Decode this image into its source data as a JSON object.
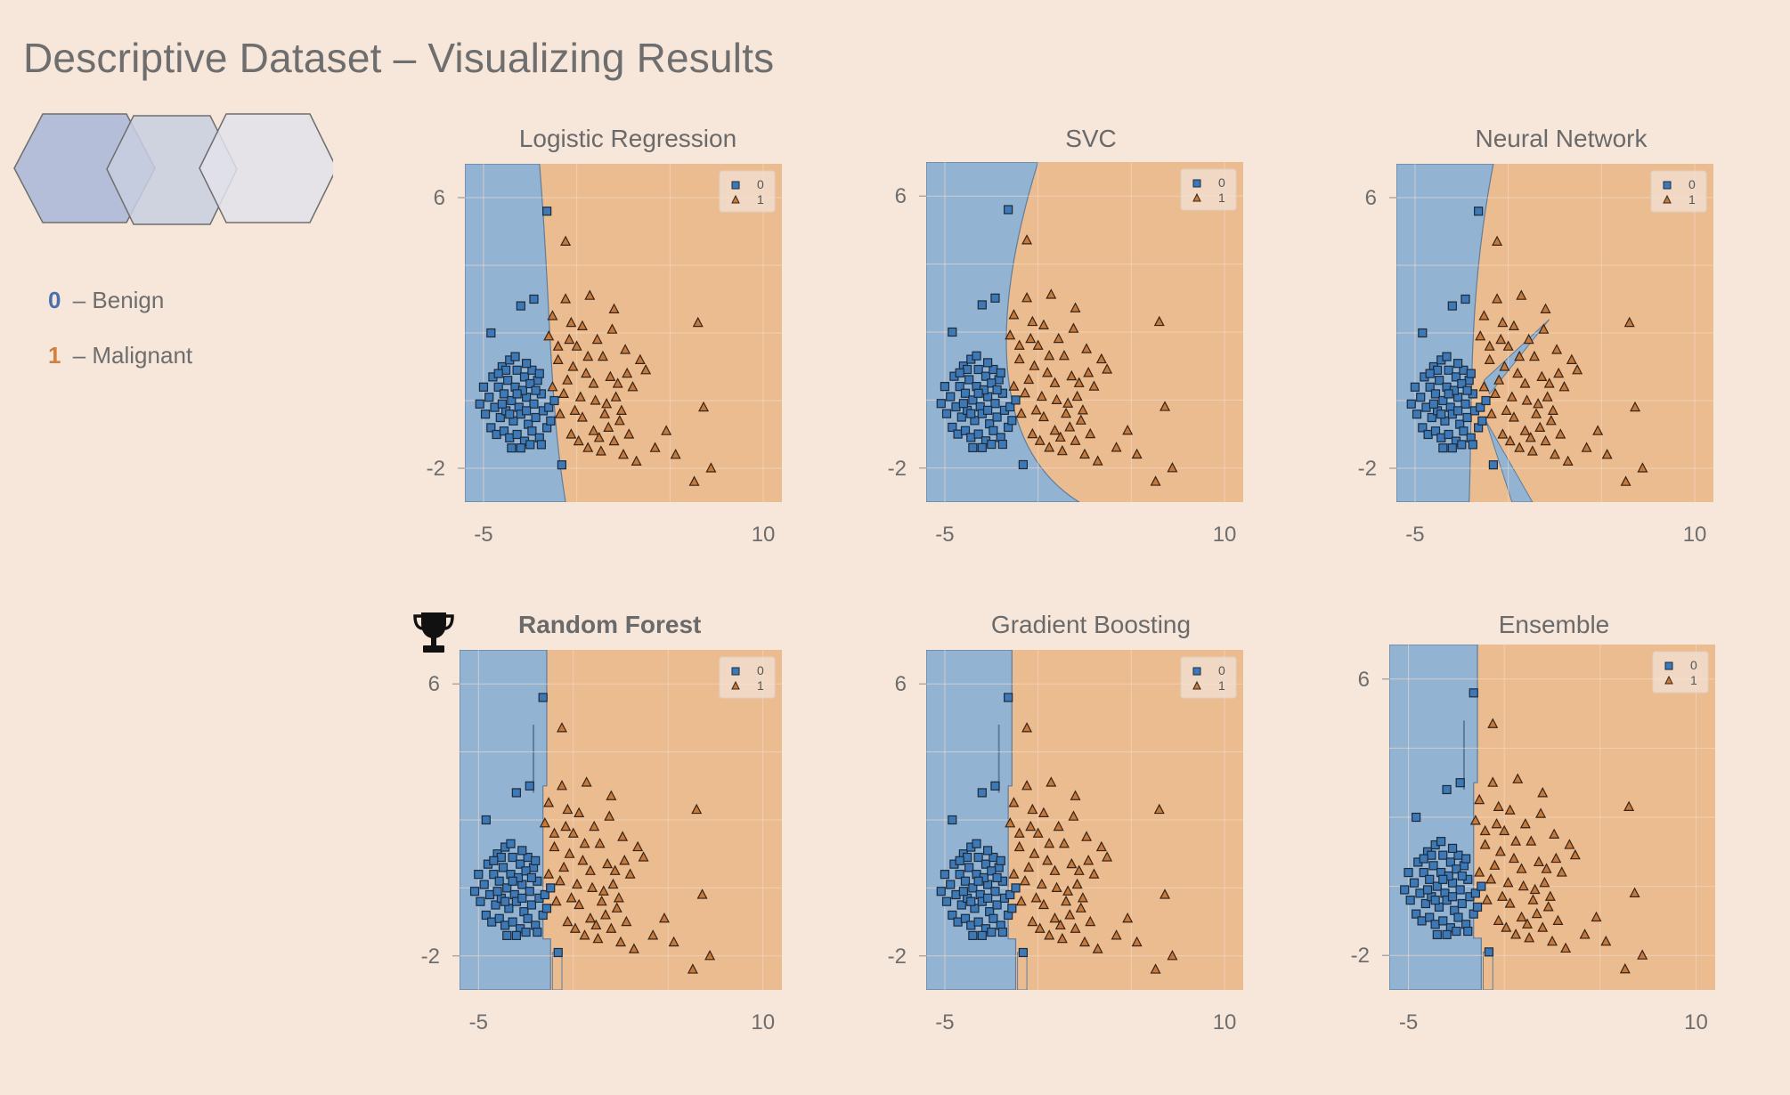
{
  "title": "Descriptive Dataset – Visualizing Results",
  "class_legend": [
    {
      "key": "0",
      "separator": " – ",
      "label": "Benign",
      "color": "#4a70b0"
    },
    {
      "key": "1",
      "separator": " – ",
      "label": "Malignant",
      "color": "#d08040"
    }
  ],
  "decoration": {
    "icon": "hexagon-cluster-icon",
    "colors": [
      "#b0bcd8",
      "#c8cfe0",
      "#e2e2ea"
    ]
  },
  "colors": {
    "region_0": "#93b3d3",
    "region_1": "#ebbc90",
    "marker_0": "#3d79b6",
    "marker_1": "#c47a3c",
    "grid": "#f5dcc8"
  },
  "panel_legend_labels": [
    "0",
    "1"
  ],
  "winner_icon": "trophy-icon",
  "chart_data": [
    {
      "type": "scatter",
      "title": "Logistic Regression",
      "winner": false,
      "boundary": "linear",
      "xticks": [
        "-5",
        "10"
      ],
      "yticks": [
        "6",
        "-2"
      ],
      "xlim": [
        -6,
        11
      ],
      "ylim": [
        -3,
        7
      ],
      "legend": [
        "0",
        "1"
      ],
      "grid": true
    },
    {
      "type": "scatter",
      "title": "SVC",
      "winner": false,
      "boundary": "curved",
      "xticks": [
        "-5",
        "10"
      ],
      "yticks": [
        "6",
        "-2"
      ],
      "xlim": [
        -6,
        11
      ],
      "ylim": [
        -3,
        7
      ],
      "legend": [
        "0",
        "1"
      ],
      "grid": true
    },
    {
      "type": "scatter",
      "title": "Neural Network",
      "winner": false,
      "boundary": "wedge",
      "xticks": [
        "-5",
        "10"
      ],
      "yticks": [
        "6",
        "-2"
      ],
      "xlim": [
        -6,
        11
      ],
      "ylim": [
        -3,
        7
      ],
      "legend": [
        "0",
        "1"
      ],
      "grid": true
    },
    {
      "type": "scatter",
      "title": "Random Forest",
      "winner": true,
      "boundary": "step",
      "xticks": [
        "-5",
        "10"
      ],
      "yticks": [
        "6",
        "-2"
      ],
      "xlim": [
        -6,
        11
      ],
      "ylim": [
        -3,
        7
      ],
      "legend": [
        "0",
        "1"
      ],
      "grid": true
    },
    {
      "type": "scatter",
      "title": "Gradient Boosting",
      "winner": false,
      "boundary": "step",
      "xticks": [
        "-5",
        "10"
      ],
      "yticks": [
        "6",
        "-2"
      ],
      "xlim": [
        -6,
        11
      ],
      "ylim": [
        -3,
        7
      ],
      "legend": [
        "0",
        "1"
      ],
      "grid": true
    },
    {
      "type": "scatter",
      "title": "Ensemble",
      "winner": false,
      "boundary": "step",
      "xticks": [
        "-5",
        "10"
      ],
      "yticks": [
        "6",
        "-2"
      ],
      "xlim": [
        -6,
        11
      ],
      "ylim": [
        -3,
        7
      ],
      "legend": [
        "0",
        "1"
      ],
      "grid": true
    }
  ],
  "points": {
    "class_0": [
      [
        -1.6,
        5.6
      ],
      [
        -2.3,
        3.0
      ],
      [
        -3.0,
        2.8
      ],
      [
        -4.6,
        2.0
      ],
      [
        -2.1,
        0.6
      ],
      [
        -0.8,
        -1.9
      ],
      [
        -4.0,
        1.0
      ],
      [
        -3.6,
        1.2
      ],
      [
        -3.2,
        0.9
      ],
      [
        -2.8,
        0.7
      ],
      [
        -2.4,
        0.9
      ],
      [
        -4.5,
        0.7
      ],
      [
        -4.2,
        0.4
      ],
      [
        -3.9,
        0.2
      ],
      [
        -3.5,
        0.0
      ],
      [
        -3.1,
        -0.2
      ],
      [
        -2.7,
        0.1
      ],
      [
        -2.3,
        -0.1
      ],
      [
        -1.9,
        0.2
      ],
      [
        -4.7,
        0.1
      ],
      [
        -4.4,
        -0.2
      ],
      [
        -4.1,
        -0.5
      ],
      [
        -3.8,
        -0.3
      ],
      [
        -3.4,
        -0.6
      ],
      [
        -3.0,
        -0.4
      ],
      [
        -2.6,
        -0.7
      ],
      [
        -2.2,
        -0.5
      ],
      [
        -1.8,
        -0.3
      ],
      [
        -4.9,
        -0.4
      ],
      [
        -4.6,
        -0.8
      ],
      [
        -4.3,
        -1.0
      ],
      [
        -3.9,
        -0.9
      ],
      [
        -3.6,
        -1.1
      ],
      [
        -3.2,
        -1.0
      ],
      [
        -2.8,
        -1.2
      ],
      [
        -2.4,
        -0.9
      ],
      [
        -2.0,
        -1.1
      ],
      [
        -1.6,
        -0.8
      ],
      [
        -3.7,
        0.6
      ],
      [
        -3.3,
        0.4
      ],
      [
        -2.9,
        0.3
      ],
      [
        -2.5,
        0.5
      ],
      [
        -4.0,
        -0.1
      ],
      [
        -3.6,
        -0.4
      ],
      [
        -3.2,
        0.2
      ],
      [
        -2.7,
        -0.3
      ],
      [
        -3.8,
        0.9
      ],
      [
        -2.2,
        0.3
      ],
      [
        -1.5,
        -0.2
      ],
      [
        -1.2,
        0.0
      ],
      [
        -1.4,
        -0.6
      ],
      [
        -3.5,
        -1.4
      ],
      [
        -3.0,
        -1.4
      ],
      [
        -2.5,
        -1.3
      ],
      [
        -1.9,
        -1.3
      ],
      [
        -4.2,
        0.8
      ],
      [
        -2.0,
        0.8
      ],
      [
        -5.2,
        -0.1
      ],
      [
        -5.0,
        0.4
      ],
      [
        -3.3,
        1.3
      ],
      [
        -2.7,
        1.1
      ]
    ],
    "class_1": [
      [
        -0.6,
        4.7
      ],
      [
        -0.6,
        3.0
      ],
      [
        0.7,
        3.1
      ],
      [
        2.0,
        2.7
      ],
      [
        -1.3,
        2.5
      ],
      [
        -0.3,
        2.3
      ],
      [
        0.3,
        2.2
      ],
      [
        1.1,
        1.8
      ],
      [
        -1.5,
        1.9
      ],
      [
        -0.4,
        1.8
      ],
      [
        0.0,
        1.6
      ],
      [
        1.4,
        1.3
      ],
      [
        2.6,
        1.5
      ],
      [
        3.4,
        1.2
      ],
      [
        -1.0,
        1.2
      ],
      [
        -0.2,
        1.0
      ],
      [
        0.5,
        0.8
      ],
      [
        1.8,
        0.7
      ],
      [
        2.2,
        0.5
      ],
      [
        3.0,
        0.4
      ],
      [
        -1.3,
        0.4
      ],
      [
        -0.7,
        0.2
      ],
      [
        0.2,
        0.1
      ],
      [
        1.0,
        0.0
      ],
      [
        1.6,
        -0.1
      ],
      [
        2.4,
        -0.3
      ],
      [
        -0.9,
        -0.4
      ],
      [
        0.3,
        -0.5
      ],
      [
        0.9,
        -0.9
      ],
      [
        1.7,
        -0.8
      ],
      [
        2.8,
        -1.0
      ],
      [
        -0.3,
        -1.0
      ],
      [
        0.6,
        -1.4
      ],
      [
        1.3,
        -1.5
      ],
      [
        2.0,
        -1.2
      ],
      [
        2.5,
        -1.6
      ],
      [
        3.2,
        -1.8
      ],
      [
        4.2,
        -1.4
      ],
      [
        5.3,
        -1.6
      ],
      [
        6.5,
        2.3
      ],
      [
        6.8,
        -0.2
      ],
      [
        7.2,
        -2.0
      ],
      [
        1.5,
        -0.4
      ],
      [
        0.1,
        -1.2
      ],
      [
        2.1,
        0.1
      ],
      [
        -0.5,
        0.6
      ],
      [
        1.9,
        2.1
      ],
      [
        -1.0,
        1.6
      ],
      [
        0.6,
        1.3
      ],
      [
        2.7,
        0.8
      ],
      [
        3.7,
        0.9
      ],
      [
        1.2,
        -1.1
      ],
      [
        4.8,
        -0.9
      ],
      [
        6.3,
        -2.4
      ],
      [
        2.3,
        -0.6
      ],
      [
        -0.1,
        -0.3
      ],
      [
        0.9,
        0.5
      ]
    ]
  }
}
